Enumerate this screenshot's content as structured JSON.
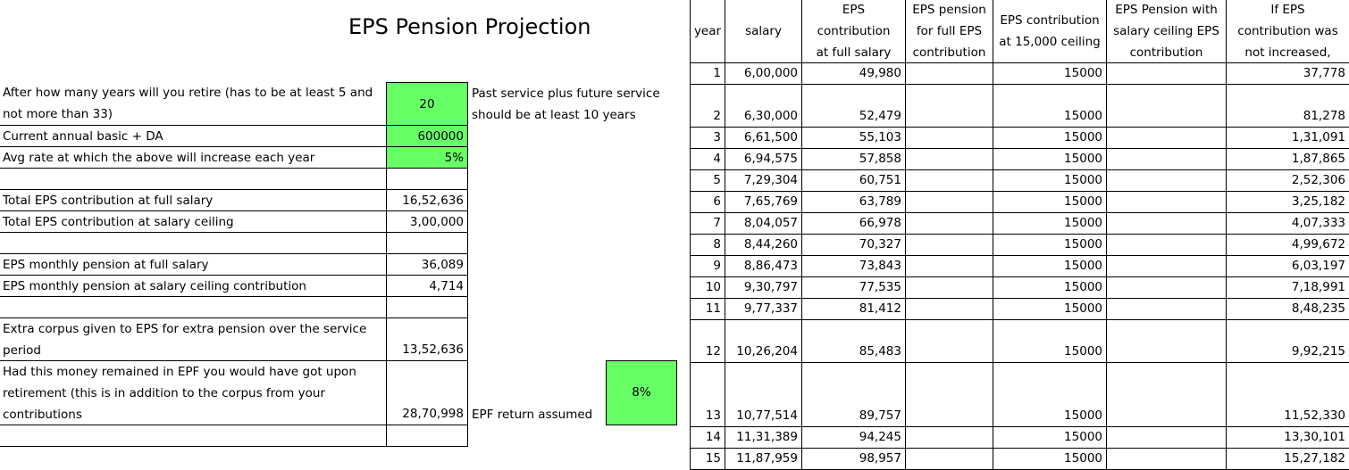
{
  "title": "EPS Pension Projection",
  "colors": {
    "input_fill": "#66ff66",
    "grid": "#000000"
  },
  "inputs": {
    "retire_label": "After how many years will you retire (has to be at least 5 and not more than 33)",
    "retire_value": "20",
    "retire_note_line1": "Past service plus future service",
    "retire_note_line2": "should be at least 10 years",
    "salary_label": "Current annual basic + DA",
    "salary_value": "600000",
    "rate_label": "Avg rate at which the above will increase each year",
    "rate_value": "5%"
  },
  "results": {
    "total_full_label": "Total EPS contribution at full salary",
    "total_full_value": "16,52,636",
    "total_ceiling_label": "Total EPS contribution at salary ceiling",
    "total_ceiling_value": "3,00,000",
    "pension_full_label": "EPS monthly pension at full salary",
    "pension_full_value": "36,089",
    "pension_ceiling_label": "EPS monthly pension at salary ceiling contribution",
    "pension_ceiling_value": "4,714",
    "extra_corpus_label": "Extra corpus  given to EPS for extra pension over the service period",
    "extra_corpus_value": "13,52,636",
    "epf_label": "Had this money remained in EPF you would have got upon retirement (this is in addition to the corpus from your contributions",
    "epf_value": "28,70,998",
    "epf_return_label": "EPF return assumed",
    "epf_return_value": "8%"
  },
  "table": {
    "headers": [
      "year",
      "salary",
      "EPS\ncontribution\nat full salary",
      "EPS pension\nfor full EPS\ncontribution",
      "EPS contribution\nat 15,000 ceiling",
      "EPS Pension with\nsalary ceiling EPS\ncontribution",
      "If EPS\ncontribution was\nnot increased,"
    ],
    "rows": [
      [
        "1",
        "6,00,000",
        "49,980",
        "",
        "15000",
        "",
        "37,778"
      ],
      [
        "2",
        "6,30,000",
        "52,479",
        "",
        "15000",
        "",
        "81,278"
      ],
      [
        "3",
        "6,61,500",
        "55,103",
        "",
        "15000",
        "",
        "1,31,091"
      ],
      [
        "4",
        "6,94,575",
        "57,858",
        "",
        "15000",
        "",
        "1,87,865"
      ],
      [
        "5",
        "7,29,304",
        "60,751",
        "",
        "15000",
        "",
        "2,52,306"
      ],
      [
        "6",
        "7,65,769",
        "63,789",
        "",
        "15000",
        "",
        "3,25,182"
      ],
      [
        "7",
        "8,04,057",
        "66,978",
        "",
        "15000",
        "",
        "4,07,333"
      ],
      [
        "8",
        "8,44,260",
        "70,327",
        "",
        "15000",
        "",
        "4,99,672"
      ],
      [
        "9",
        "8,86,473",
        "73,843",
        "",
        "15000",
        "",
        "6,03,197"
      ],
      [
        "10",
        "9,30,797",
        "77,535",
        "",
        "15000",
        "",
        "7,18,991"
      ],
      [
        "11",
        "9,77,337",
        "81,412",
        "",
        "15000",
        "",
        "8,48,235"
      ],
      [
        "12",
        "10,26,204",
        "85,483",
        "",
        "15000",
        "",
        "9,92,215"
      ],
      [
        "13",
        "10,77,514",
        "89,757",
        "",
        "15000",
        "",
        "11,52,330"
      ],
      [
        "14",
        "11,31,389",
        "94,245",
        "",
        "15000",
        "",
        "13,30,101"
      ],
      [
        "15",
        "11,87,959",
        "98,957",
        "",
        "15000",
        "",
        "15,27,182"
      ]
    ]
  }
}
